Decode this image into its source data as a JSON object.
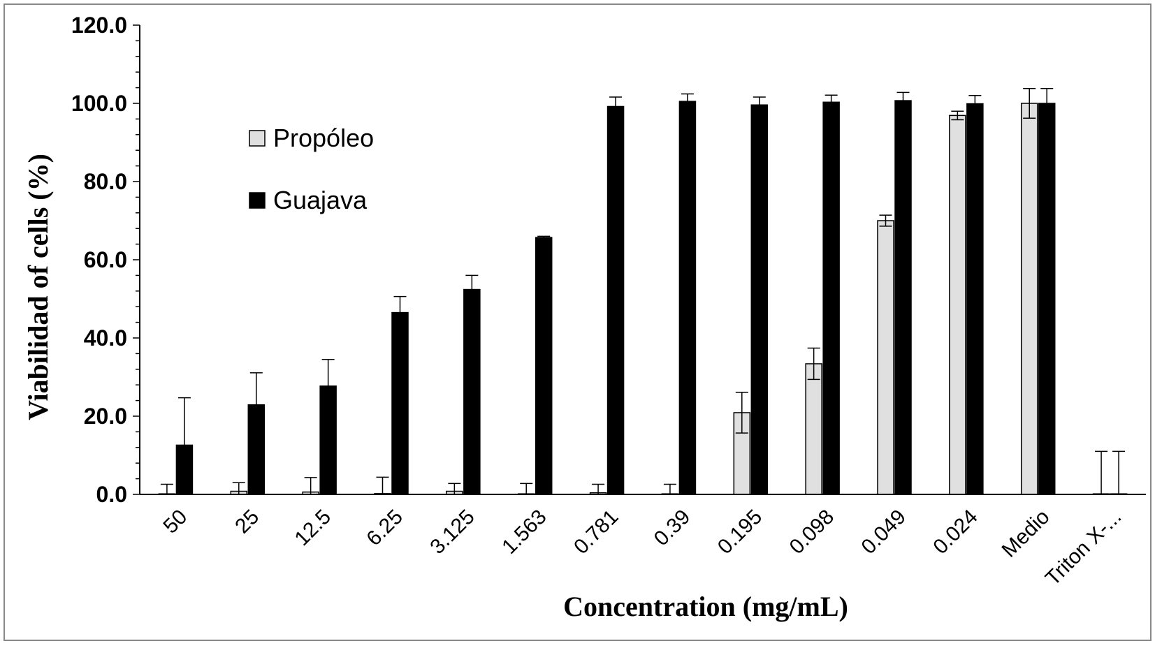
{
  "chart_data": {
    "type": "bar",
    "title": "",
    "xlabel": "Concentration (mg/mL)",
    "ylabel": "Viabilidad of cells (%)",
    "ylim": [
      0,
      120
    ],
    "yticks": [
      "0.0",
      "20.0",
      "40.0",
      "60.0",
      "80.0",
      "100.0",
      "120.0"
    ],
    "categories": [
      "50",
      "25",
      "12.5",
      "6.25",
      "3.125",
      "1.563",
      "0.781",
      "0.39",
      "0.195",
      "0.098",
      "0.049",
      "0.024",
      "Medio",
      "Triton X-..."
    ],
    "legend_position": "upper-left",
    "grid": false,
    "series": [
      {
        "name": "Propóleo",
        "color": "#e0e0e0",
        "values": [
          0.1,
          0.8,
          0.6,
          0.2,
          0.8,
          0.0,
          0.4,
          0.0,
          20.9,
          33.4,
          70.0,
          96.9,
          100.0,
          0.0
        ],
        "errors": [
          2.5,
          2.2,
          3.7,
          4.2,
          2.0,
          2.8,
          2.2,
          2.6,
          5.2,
          4.0,
          1.4,
          1.1,
          3.8,
          11.0
        ]
      },
      {
        "name": "Guajava",
        "color": "#000000",
        "values": [
          12.6,
          22.9,
          27.7,
          46.5,
          52.4,
          65.7,
          99.2,
          100.5,
          99.6,
          100.3,
          100.7,
          99.9,
          100.0,
          0.0
        ],
        "errors": [
          12.1,
          8.2,
          6.8,
          4.1,
          3.6,
          0.3,
          2.4,
          1.9,
          2.0,
          1.8,
          2.1,
          2.1,
          3.8,
          11.0
        ]
      }
    ]
  }
}
